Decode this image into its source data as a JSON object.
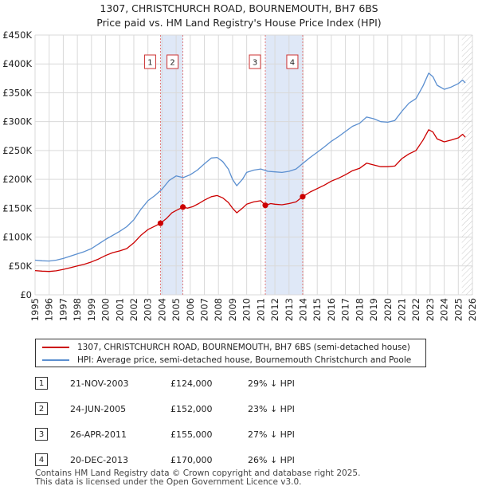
{
  "title_line1": "1307, CHRISTCHURCH ROAD, BOURNEMOUTH, BH7 6BS",
  "title_line2": "Price paid vs. HM Land Registry's House Price Index (HPI)",
  "chart_data": {
    "type": "line",
    "title": "1307, CHRISTCHURCH ROAD, BOURNEMOUTH, BH7 6BS — Price paid vs. HM Land Registry's House Price Index (HPI)",
    "x_range": [
      1995,
      2026
    ],
    "ylim": [
      0,
      450000
    ],
    "y_ticks": [
      0,
      50000,
      100000,
      150000,
      200000,
      250000,
      300000,
      350000,
      400000,
      450000
    ],
    "y_tick_labels": [
      "£0",
      "£50K",
      "£100K",
      "£150K",
      "£200K",
      "£250K",
      "£300K",
      "£350K",
      "£400K",
      "£450K"
    ],
    "x_ticks": [
      1995,
      1996,
      1997,
      1998,
      1999,
      2000,
      2001,
      2002,
      2003,
      2004,
      2005,
      2006,
      2007,
      2008,
      2009,
      2010,
      2011,
      2012,
      2013,
      2014,
      2015,
      2016,
      2017,
      2018,
      2019,
      2020,
      2021,
      2022,
      2023,
      2024,
      2025,
      2026
    ],
    "x_tick_labels": [
      "1995",
      "1996",
      "1997",
      "1998",
      "1999",
      "2000",
      "2001",
      "2002",
      "2003",
      "2004",
      "2005",
      "2006",
      "2007",
      "2008",
      "2009",
      "2010",
      "2011",
      "2012",
      "2013",
      "2014",
      "2015",
      "2016",
      "2017",
      "2018",
      "2019",
      "2020",
      "2021",
      "2022",
      "2023",
      "2024",
      "2025",
      "2026"
    ],
    "grid": true,
    "shaded_ranges": [
      [
        2003.89,
        2005.48
      ],
      [
        2011.32,
        2013.97
      ]
    ],
    "future_hatch_from": 2025.25,
    "series": [
      {
        "name": "1307, CHRISTCHURCH ROAD, BOURNEMOUTH, BH7 6BS (semi-detached house)",
        "color": "#cc0000",
        "points": [
          [
            1995.0,
            42000
          ],
          [
            1995.5,
            41000
          ],
          [
            1996.0,
            40500
          ],
          [
            1996.5,
            41500
          ],
          [
            1997.0,
            44000
          ],
          [
            1997.5,
            47000
          ],
          [
            1998.0,
            50000
          ],
          [
            1998.5,
            53000
          ],
          [
            1999.0,
            57000
          ],
          [
            1999.5,
            62000
          ],
          [
            2000.0,
            68000
          ],
          [
            2000.5,
            73000
          ],
          [
            2001.0,
            76000
          ],
          [
            2001.5,
            80000
          ],
          [
            2002.0,
            90000
          ],
          [
            2002.5,
            103000
          ],
          [
            2003.0,
            113000
          ],
          [
            2003.5,
            119000
          ],
          [
            2003.89,
            124000
          ],
          [
            2004.3,
            132000
          ],
          [
            2004.7,
            142000
          ],
          [
            2005.0,
            146000
          ],
          [
            2005.48,
            152000
          ],
          [
            2005.8,
            150000
          ],
          [
            2006.2,
            153000
          ],
          [
            2006.6,
            158000
          ],
          [
            2007.0,
            164000
          ],
          [
            2007.5,
            170000
          ],
          [
            2007.9,
            172000
          ],
          [
            2008.3,
            168000
          ],
          [
            2008.7,
            160000
          ],
          [
            2009.0,
            150000
          ],
          [
            2009.3,
            142000
          ],
          [
            2009.7,
            150000
          ],
          [
            2010.0,
            157000
          ],
          [
            2010.5,
            161000
          ],
          [
            2011.0,
            163000
          ],
          [
            2011.32,
            155000
          ],
          [
            2011.7,
            158000
          ],
          [
            2012.0,
            157000
          ],
          [
            2012.5,
            156000
          ],
          [
            2013.0,
            158000
          ],
          [
            2013.5,
            161000
          ],
          [
            2013.97,
            170000
          ],
          [
            2014.5,
            178000
          ],
          [
            2015.0,
            184000
          ],
          [
            2015.5,
            190000
          ],
          [
            2016.0,
            197000
          ],
          [
            2016.5,
            202000
          ],
          [
            2017.0,
            208000
          ],
          [
            2017.5,
            215000
          ],
          [
            2018.0,
            219000
          ],
          [
            2018.5,
            228000
          ],
          [
            2019.0,
            225000
          ],
          [
            2019.5,
            222000
          ],
          [
            2020.0,
            222000
          ],
          [
            2020.5,
            223000
          ],
          [
            2021.0,
            236000
          ],
          [
            2021.5,
            244000
          ],
          [
            2022.0,
            250000
          ],
          [
            2022.5,
            268000
          ],
          [
            2022.9,
            286000
          ],
          [
            2023.2,
            282000
          ],
          [
            2023.5,
            270000
          ],
          [
            2024.0,
            265000
          ],
          [
            2024.5,
            268000
          ],
          [
            2025.0,
            272000
          ],
          [
            2025.3,
            278000
          ],
          [
            2025.5,
            273000
          ]
        ]
      },
      {
        "name": "HPI: Average price, semi-detached house, Bournemouth Christchurch and Poole",
        "color": "#5b8fd0",
        "points": [
          [
            1995.0,
            60000
          ],
          [
            1995.5,
            59000
          ],
          [
            1996.0,
            58500
          ],
          [
            1996.5,
            60000
          ],
          [
            1997.0,
            63000
          ],
          [
            1997.5,
            67000
          ],
          [
            1998.0,
            71000
          ],
          [
            1998.5,
            75000
          ],
          [
            1999.0,
            80000
          ],
          [
            1999.5,
            88000
          ],
          [
            2000.0,
            96000
          ],
          [
            2000.5,
            103000
          ],
          [
            2001.0,
            110000
          ],
          [
            2001.5,
            118000
          ],
          [
            2002.0,
            130000
          ],
          [
            2002.5,
            148000
          ],
          [
            2003.0,
            163000
          ],
          [
            2003.5,
            172000
          ],
          [
            2004.0,
            183000
          ],
          [
            2004.5,
            198000
          ],
          [
            2005.0,
            206000
          ],
          [
            2005.5,
            203000
          ],
          [
            2006.0,
            208000
          ],
          [
            2006.5,
            216000
          ],
          [
            2007.0,
            227000
          ],
          [
            2007.5,
            237000
          ],
          [
            2007.9,
            238000
          ],
          [
            2008.3,
            231000
          ],
          [
            2008.7,
            218000
          ],
          [
            2009.0,
            200000
          ],
          [
            2009.3,
            189000
          ],
          [
            2009.7,
            200000
          ],
          [
            2010.0,
            212000
          ],
          [
            2010.5,
            216000
          ],
          [
            2011.0,
            218000
          ],
          [
            2011.5,
            214000
          ],
          [
            2012.0,
            213000
          ],
          [
            2012.5,
            212000
          ],
          [
            2013.0,
            214000
          ],
          [
            2013.5,
            218000
          ],
          [
            2014.0,
            228000
          ],
          [
            2014.5,
            238000
          ],
          [
            2015.0,
            247000
          ],
          [
            2015.5,
            256000
          ],
          [
            2016.0,
            266000
          ],
          [
            2016.5,
            274000
          ],
          [
            2017.0,
            283000
          ],
          [
            2017.5,
            292000
          ],
          [
            2018.0,
            297000
          ],
          [
            2018.5,
            308000
          ],
          [
            2019.0,
            305000
          ],
          [
            2019.5,
            300000
          ],
          [
            2020.0,
            299000
          ],
          [
            2020.5,
            302000
          ],
          [
            2021.0,
            318000
          ],
          [
            2021.5,
            332000
          ],
          [
            2022.0,
            340000
          ],
          [
            2022.5,
            362000
          ],
          [
            2022.9,
            384000
          ],
          [
            2023.2,
            378000
          ],
          [
            2023.5,
            363000
          ],
          [
            2024.0,
            356000
          ],
          [
            2024.5,
            360000
          ],
          [
            2025.0,
            366000
          ],
          [
            2025.3,
            372000
          ],
          [
            2025.5,
            367000
          ]
        ]
      }
    ],
    "markers": [
      {
        "label": "1",
        "x": 2003.89,
        "y": 124000
      },
      {
        "label": "2",
        "x": 2005.48,
        "y": 152000
      },
      {
        "label": "3",
        "x": 2011.32,
        "y": 155000
      },
      {
        "label": "4",
        "x": 2013.97,
        "y": 170000
      }
    ]
  },
  "legend": [
    {
      "label": "1307, CHRISTCHURCH ROAD, BOURNEMOUTH, BH7 6BS (semi-detached house)",
      "color": "#cc0000"
    },
    {
      "label": "HPI: Average price, semi-detached house, Bournemouth Christchurch and Poole",
      "color": "#5b8fd0"
    }
  ],
  "sales": [
    {
      "num": "1",
      "date": "21-NOV-2003",
      "price": "£124,000",
      "hpi": "29% ↓ HPI"
    },
    {
      "num": "2",
      "date": "24-JUN-2005",
      "price": "£152,000",
      "hpi": "23% ↓ HPI"
    },
    {
      "num": "3",
      "date": "26-APR-2011",
      "price": "£155,000",
      "hpi": "27% ↓ HPI"
    },
    {
      "num": "4",
      "date": "20-DEC-2013",
      "price": "£170,000",
      "hpi": "26% ↓ HPI"
    }
  ],
  "footer_line1": "Contains HM Land Registry data © Crown copyright and database right 2025.",
  "footer_line2": "This data is licensed under the Open Government Licence v3.0."
}
